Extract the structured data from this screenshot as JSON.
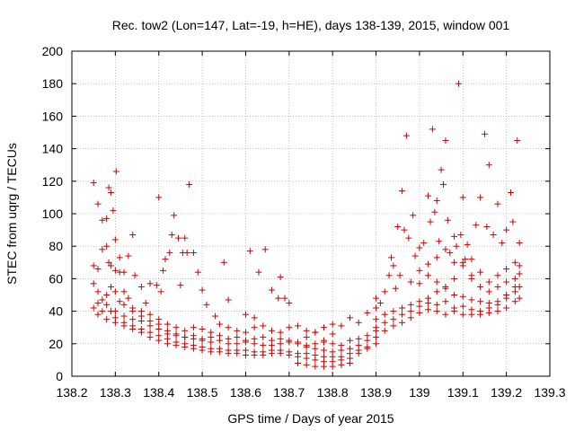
{
  "chart_data": {
    "type": "scatter",
    "title": "Rec. tow2 (Lon=147, Lat=-19, h=HE), days 138-139, 2015, window 001",
    "xlabel": "GPS time / Days of year 2015",
    "ylabel": "STEC from uqrg / TECUs",
    "xlim": [
      138.2,
      139.3
    ],
    "ylim": [
      0,
      200
    ],
    "grid": true,
    "marker": "plus",
    "marker_color": "#cc0000",
    "x_tick_labels": [
      "138.2",
      "138.3",
      "138.4",
      "138.5",
      "138.6",
      "138.7",
      "138.8",
      "138.9",
      "139",
      "139.1",
      "139.2",
      "139.3"
    ],
    "y_tick_labels": [
      "0",
      "20",
      "40",
      "60",
      "80",
      "100",
      "120",
      "140",
      "160",
      "180",
      "200"
    ],
    "points": [
      [
        138.25,
        119
      ],
      [
        138.26,
        106
      ],
      [
        138.27,
        96
      ],
      [
        138.28,
        97
      ],
      [
        138.285,
        116
      ],
      [
        138.29,
        113
      ],
      [
        138.295,
        102
      ],
      [
        138.3,
        84
      ],
      [
        138.302,
        126
      ],
      [
        138.31,
        73
      ],
      [
        138.32,
        64
      ],
      [
        138.33,
        74
      ],
      [
        138.34,
        87
      ],
      [
        138.345,
        62
      ],
      [
        138.36,
        55
      ],
      [
        138.37,
        45
      ],
      [
        138.38,
        57
      ],
      [
        138.395,
        56
      ],
      [
        138.4,
        110
      ],
      [
        138.405,
        52
      ],
      [
        138.41,
        65
      ],
      [
        138.415,
        72
      ],
      [
        138.425,
        76
      ],
      [
        138.43,
        87
      ],
      [
        138.435,
        99
      ],
      [
        138.445,
        85
      ],
      [
        138.45,
        56
      ],
      [
        138.455,
        76
      ],
      [
        138.46,
        85
      ],
      [
        138.465,
        76
      ],
      [
        138.47,
        118
      ],
      [
        138.48,
        76
      ],
      [
        138.49,
        64
      ],
      [
        138.5,
        53
      ],
      [
        138.51,
        44
      ],
      [
        138.53,
        37
      ],
      [
        138.55,
        70
      ],
      [
        138.56,
        47
      ],
      [
        138.6,
        38
      ],
      [
        138.61,
        77
      ],
      [
        138.62,
        36
      ],
      [
        138.63,
        64
      ],
      [
        138.645,
        78
      ],
      [
        138.66,
        53
      ],
      [
        138.675,
        48
      ],
      [
        138.68,
        61
      ],
      [
        138.69,
        48
      ],
      [
        138.7,
        45
      ],
      [
        138.25,
        68
      ],
      [
        138.26,
        66
      ],
      [
        138.27,
        78
      ],
      [
        138.28,
        80
      ],
      [
        138.285,
        70
      ],
      [
        138.29,
        68
      ],
      [
        138.3,
        65
      ],
      [
        138.31,
        64
      ],
      [
        138.32,
        52
      ],
      [
        138.33,
        48
      ],
      [
        138.34,
        42
      ],
      [
        138.36,
        40
      ],
      [
        138.38,
        38
      ],
      [
        138.4,
        35
      ],
      [
        138.42,
        32
      ],
      [
        138.44,
        30
      ],
      [
        138.46,
        28
      ],
      [
        138.48,
        30
      ],
      [
        138.5,
        29
      ],
      [
        138.52,
        27
      ],
      [
        138.54,
        32
      ],
      [
        138.56,
        30
      ],
      [
        138.58,
        28
      ],
      [
        138.6,
        27
      ],
      [
        138.62,
        30
      ],
      [
        138.64,
        31
      ],
      [
        138.66,
        28
      ],
      [
        138.68,
        27
      ],
      [
        138.7,
        30
      ],
      [
        138.72,
        31
      ],
      [
        138.74,
        28
      ],
      [
        138.76,
        27
      ],
      [
        138.78,
        30
      ],
      [
        138.8,
        32
      ],
      [
        138.82,
        31
      ],
      [
        138.84,
        36
      ],
      [
        138.25,
        57
      ],
      [
        138.26,
        52
      ],
      [
        138.27,
        47
      ],
      [
        138.28,
        50
      ],
      [
        138.29,
        55
      ],
      [
        138.3,
        52
      ],
      [
        138.31,
        46
      ],
      [
        138.32,
        44
      ],
      [
        138.34,
        40
      ],
      [
        138.36,
        37
      ],
      [
        138.38,
        34
      ],
      [
        138.4,
        32
      ],
      [
        138.42,
        28
      ],
      [
        138.44,
        26
      ],
      [
        138.46,
        24
      ],
      [
        138.48,
        23
      ],
      [
        138.5,
        22
      ],
      [
        138.52,
        21
      ],
      [
        138.54,
        22
      ],
      [
        138.56,
        20
      ],
      [
        138.58,
        20
      ],
      [
        138.6,
        21
      ],
      [
        138.62,
        20
      ],
      [
        138.64,
        19
      ],
      [
        138.66,
        19
      ],
      [
        138.68,
        20
      ],
      [
        138.7,
        21
      ],
      [
        138.72,
        20
      ],
      [
        138.74,
        19
      ],
      [
        138.76,
        20
      ],
      [
        138.78,
        21
      ],
      [
        138.8,
        20
      ],
      [
        138.82,
        19
      ],
      [
        138.84,
        22
      ],
      [
        138.86,
        23
      ],
      [
        138.88,
        25
      ],
      [
        138.9,
        28
      ],
      [
        138.25,
        42
      ],
      [
        138.26,
        45
      ],
      [
        138.27,
        40
      ],
      [
        138.28,
        44
      ],
      [
        138.29,
        40
      ],
      [
        138.3,
        36
      ],
      [
        138.32,
        33
      ],
      [
        138.34,
        31
      ],
      [
        138.36,
        29
      ],
      [
        138.38,
        27
      ],
      [
        138.4,
        25
      ],
      [
        138.42,
        23
      ],
      [
        138.44,
        21
      ],
      [
        138.46,
        20
      ],
      [
        138.48,
        19
      ],
      [
        138.5,
        18
      ],
      [
        138.52,
        17
      ],
      [
        138.54,
        17
      ],
      [
        138.56,
        16
      ],
      [
        138.58,
        16
      ],
      [
        138.6,
        16
      ],
      [
        138.62,
        15
      ],
      [
        138.64,
        15
      ],
      [
        138.66,
        16
      ],
      [
        138.68,
        16
      ],
      [
        138.7,
        15
      ],
      [
        138.72,
        14
      ],
      [
        138.74,
        14
      ],
      [
        138.76,
        13
      ],
      [
        138.78,
        12
      ],
      [
        138.8,
        12
      ],
      [
        138.82,
        12
      ],
      [
        138.84,
        14
      ],
      [
        138.86,
        16
      ],
      [
        138.88,
        18
      ],
      [
        138.9,
        20
      ],
      [
        138.26,
        38
      ],
      [
        138.28,
        35
      ],
      [
        138.3,
        33
      ],
      [
        138.32,
        31
      ],
      [
        138.34,
        29
      ],
      [
        138.36,
        27
      ],
      [
        138.38,
        24
      ],
      [
        138.4,
        22
      ],
      [
        138.42,
        20
      ],
      [
        138.44,
        19
      ],
      [
        138.46,
        18
      ],
      [
        138.48,
        17
      ],
      [
        138.5,
        16
      ],
      [
        138.52,
        15
      ],
      [
        138.54,
        15
      ],
      [
        138.56,
        14
      ],
      [
        138.58,
        14
      ],
      [
        138.6,
        13
      ],
      [
        138.62,
        13
      ],
      [
        138.64,
        13
      ],
      [
        138.66,
        14
      ],
      [
        138.68,
        14
      ],
      [
        138.7,
        13
      ],
      [
        138.72,
        12
      ],
      [
        138.74,
        11
      ],
      [
        138.76,
        10
      ],
      [
        138.78,
        9
      ],
      [
        138.8,
        9
      ],
      [
        138.82,
        10
      ],
      [
        138.84,
        11
      ],
      [
        138.86,
        14
      ],
      [
        138.88,
        17
      ],
      [
        138.3,
        40
      ],
      [
        138.32,
        37
      ],
      [
        138.34,
        35
      ],
      [
        138.36,
        34
      ],
      [
        138.38,
        31
      ],
      [
        138.4,
        29
      ],
      [
        138.42,
        26
      ],
      [
        138.44,
        25
      ],
      [
        138.46,
        24
      ],
      [
        138.48,
        25
      ],
      [
        138.5,
        23
      ],
      [
        138.52,
        24
      ],
      [
        138.54,
        25
      ],
      [
        138.56,
        23
      ],
      [
        138.58,
        24
      ],
      [
        138.6,
        22
      ],
      [
        138.62,
        23
      ],
      [
        138.64,
        24
      ],
      [
        138.66,
        22
      ],
      [
        138.68,
        23
      ],
      [
        138.7,
        22
      ],
      [
        138.72,
        21
      ],
      [
        138.74,
        18
      ],
      [
        138.76,
        17
      ],
      [
        138.78,
        16
      ],
      [
        138.8,
        15
      ],
      [
        138.82,
        16
      ],
      [
        138.84,
        17
      ],
      [
        138.86,
        19
      ],
      [
        138.88,
        22
      ],
      [
        138.9,
        24
      ],
      [
        138.72,
        8
      ],
      [
        138.74,
        7
      ],
      [
        138.76,
        6
      ],
      [
        138.78,
        6
      ],
      [
        138.8,
        6
      ],
      [
        138.82,
        7
      ],
      [
        138.84,
        8
      ],
      [
        138.74,
        24
      ],
      [
        138.76,
        27
      ],
      [
        138.78,
        22
      ],
      [
        138.8,
        26
      ],
      [
        138.86,
        33
      ],
      [
        138.88,
        39
      ],
      [
        138.9,
        42
      ],
      [
        138.9,
        48
      ],
      [
        138.91,
        45
      ],
      [
        138.92,
        52
      ],
      [
        138.93,
        62
      ],
      [
        138.935,
        73
      ],
      [
        138.94,
        68
      ],
      [
        138.945,
        54
      ],
      [
        138.95,
        92
      ],
      [
        138.955,
        62
      ],
      [
        138.96,
        114
      ],
      [
        138.965,
        90
      ],
      [
        138.97,
        148
      ],
      [
        138.975,
        85
      ],
      [
        138.98,
        58
      ],
      [
        138.985,
        99
      ],
      [
        138.99,
        74
      ],
      [
        139.0,
        79
      ],
      [
        139.01,
        82
      ],
      [
        139.02,
        111
      ],
      [
        139.025,
        95
      ],
      [
        139.03,
        152
      ],
      [
        139.035,
        101
      ],
      [
        139.04,
        108
      ],
      [
        139.045,
        83
      ],
      [
        139.05,
        127
      ],
      [
        139.055,
        118
      ],
      [
        139.06,
        145
      ],
      [
        139.065,
        96
      ],
      [
        139.07,
        76
      ],
      [
        139.08,
        86
      ],
      [
        139.085,
        80
      ],
      [
        139.09,
        180
      ],
      [
        139.095,
        87
      ],
      [
        139.1,
        110
      ],
      [
        139.105,
        72
      ],
      [
        139.11,
        81
      ],
      [
        139.12,
        62
      ],
      [
        139.13,
        93
      ],
      [
        139.14,
        110
      ],
      [
        139.15,
        149
      ],
      [
        139.155,
        92
      ],
      [
        139.16,
        130
      ],
      [
        139.17,
        87
      ],
      [
        139.18,
        106
      ],
      [
        139.19,
        82
      ],
      [
        139.2,
        90
      ],
      [
        139.21,
        113
      ],
      [
        139.215,
        95
      ],
      [
        139.225,
        145
      ],
      [
        139.23,
        82
      ],
      [
        138.9,
        35
      ],
      [
        138.92,
        38
      ],
      [
        138.94,
        40
      ],
      [
        138.96,
        42
      ],
      [
        138.98,
        44
      ],
      [
        139.0,
        46
      ],
      [
        139.02,
        48
      ],
      [
        139.04,
        52
      ],
      [
        139.06,
        55
      ],
      [
        139.08,
        60
      ],
      [
        139.1,
        68
      ],
      [
        139.12,
        72
      ],
      [
        139.14,
        64
      ],
      [
        139.16,
        58
      ],
      [
        139.18,
        62
      ],
      [
        139.2,
        66
      ],
      [
        139.22,
        70
      ],
      [
        139.23,
        68
      ],
      [
        138.9,
        30
      ],
      [
        138.92,
        33
      ],
      [
        138.94,
        35
      ],
      [
        138.96,
        38
      ],
      [
        138.98,
        40
      ],
      [
        139.0,
        43
      ],
      [
        139.02,
        45
      ],
      [
        139.04,
        44
      ],
      [
        139.06,
        46
      ],
      [
        139.08,
        42
      ],
      [
        139.1,
        43
      ],
      [
        139.12,
        41
      ],
      [
        139.14,
        40
      ],
      [
        139.16,
        42
      ],
      [
        139.18,
        44
      ],
      [
        139.2,
        48
      ],
      [
        139.22,
        52
      ],
      [
        139.23,
        55
      ],
      [
        138.92,
        28
      ],
      [
        138.94,
        31
      ],
      [
        138.96,
        33
      ],
      [
        138.98,
        36
      ],
      [
        139.0,
        39
      ],
      [
        139.02,
        41
      ],
      [
        139.04,
        40
      ],
      [
        139.06,
        38
      ],
      [
        139.08,
        40
      ],
      [
        139.1,
        38
      ],
      [
        139.12,
        38
      ],
      [
        139.14,
        38
      ],
      [
        139.16,
        39
      ],
      [
        139.18,
        40
      ],
      [
        139.2,
        42
      ],
      [
        139.22,
        46
      ],
      [
        139.23,
        48
      ],
      [
        139.0,
        65
      ],
      [
        139.02,
        69
      ],
      [
        139.04,
        73
      ],
      [
        139.06,
        78
      ],
      [
        139.08,
        70
      ],
      [
        139.1,
        70
      ],
      [
        139.12,
        60
      ],
      [
        139.14,
        55
      ],
      [
        139.16,
        52
      ],
      [
        139.18,
        55
      ],
      [
        139.2,
        58
      ],
      [
        139.22,
        60
      ],
      [
        139.23,
        63
      ],
      [
        139.0,
        57
      ],
      [
        139.02,
        62
      ],
      [
        139.04,
        58
      ],
      [
        139.06,
        54
      ],
      [
        139.08,
        50
      ],
      [
        139.1,
        49
      ],
      [
        139.12,
        47
      ],
      [
        139.14,
        46
      ],
      [
        139.16,
        45
      ],
      [
        139.18,
        46
      ],
      [
        139.2,
        50
      ],
      [
        139.22,
        55
      ]
    ]
  }
}
